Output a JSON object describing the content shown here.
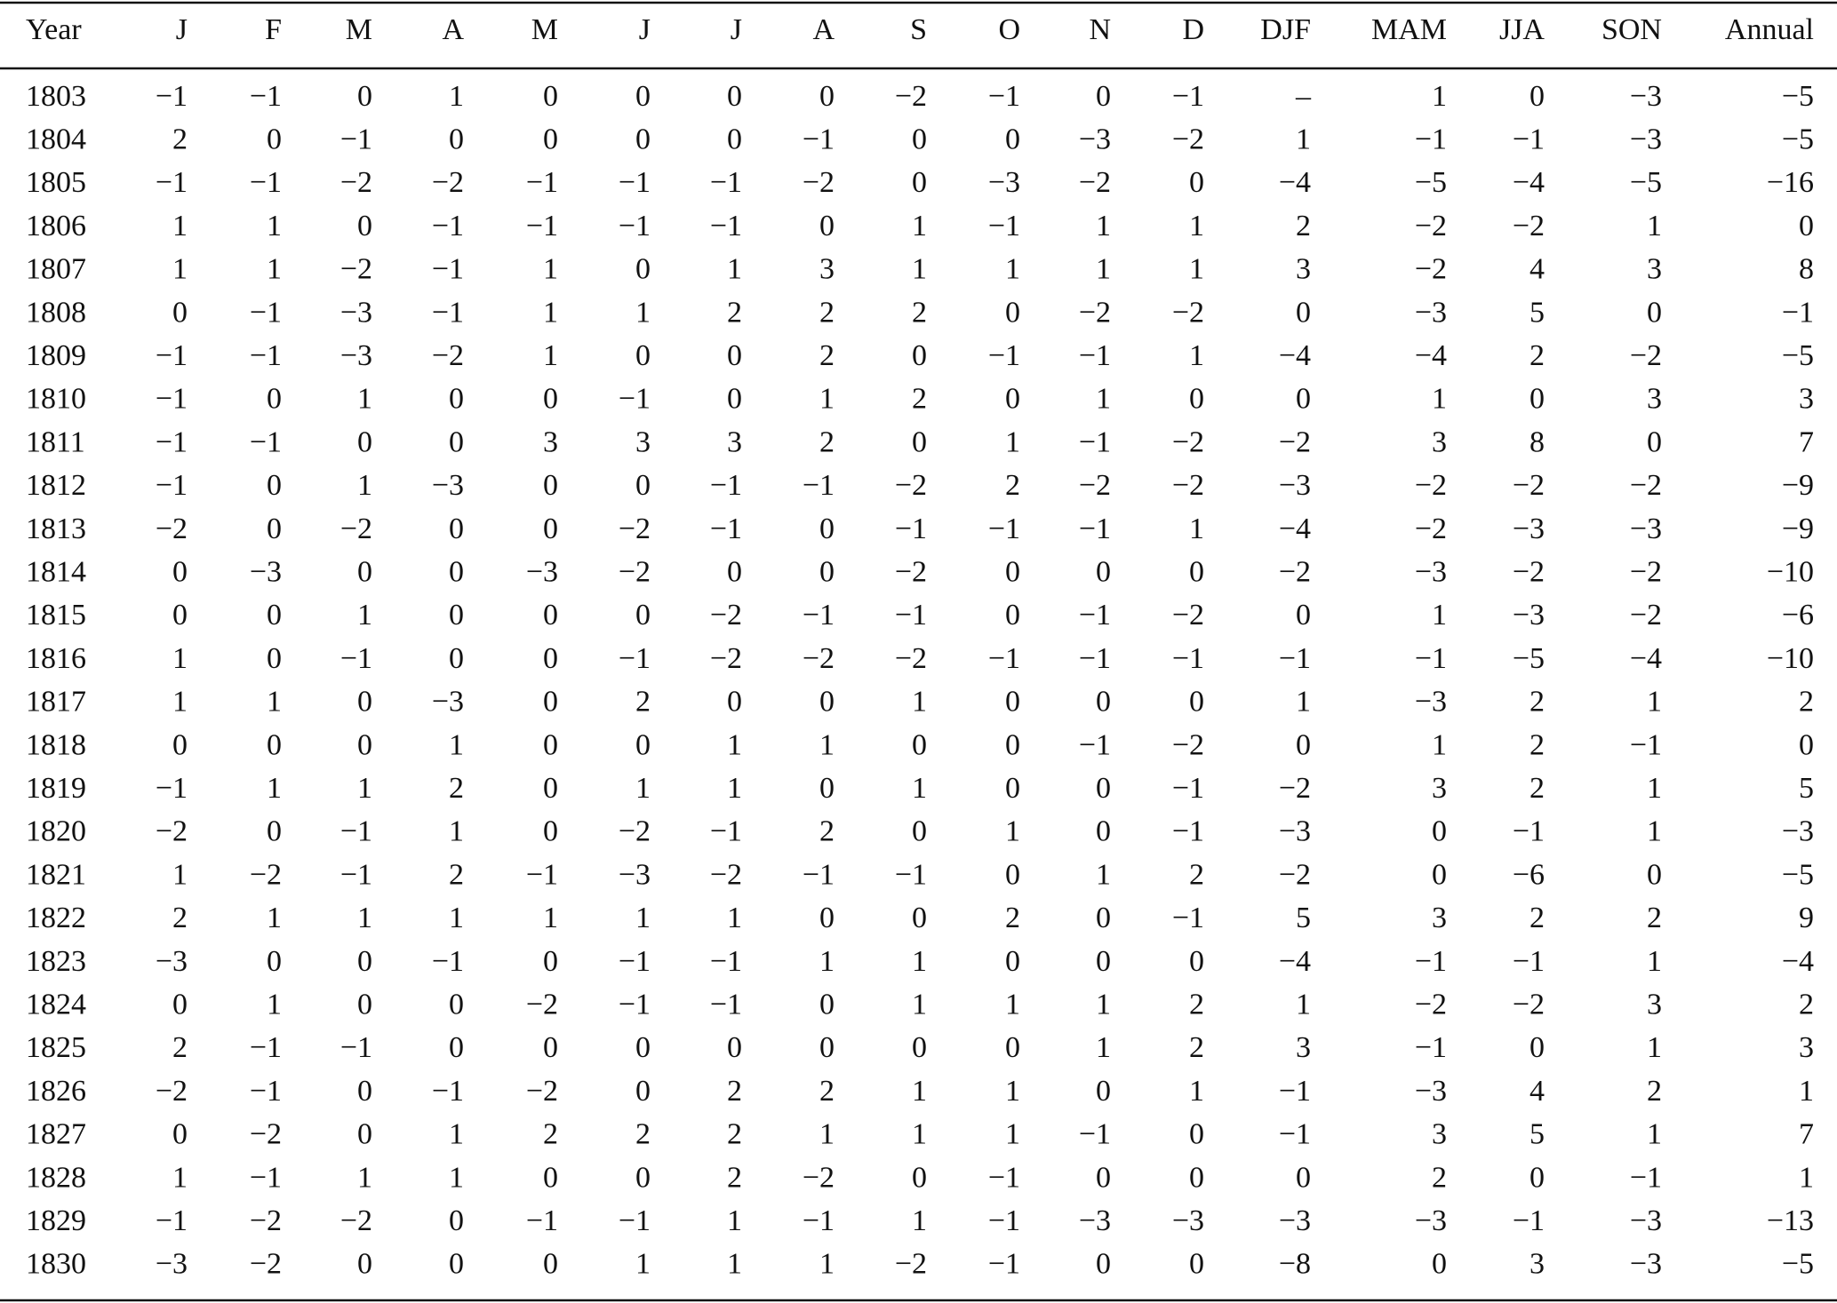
{
  "table": {
    "header": [
      "Year",
      "J",
      "F",
      "M",
      "A",
      "M",
      "J",
      "J",
      "A",
      "S",
      "O",
      "N",
      "D",
      "DJF",
      "MAM",
      "JJA",
      "SON",
      "Annual"
    ],
    "rows": [
      [
        "1803",
        "−1",
        "−1",
        "0",
        "1",
        "0",
        "0",
        "0",
        "0",
        "−2",
        "−1",
        "0",
        "−1",
        "–",
        "1",
        "0",
        "−3",
        "−5"
      ],
      [
        "1804",
        "2",
        "0",
        "−1",
        "0",
        "0",
        "0",
        "0",
        "−1",
        "0",
        "0",
        "−3",
        "−2",
        "1",
        "−1",
        "−1",
        "−3",
        "−5"
      ],
      [
        "1805",
        "−1",
        "−1",
        "−2",
        "−2",
        "−1",
        "−1",
        "−1",
        "−2",
        "0",
        "−3",
        "−2",
        "0",
        "−4",
        "−5",
        "−4",
        "−5",
        "−16"
      ],
      [
        "1806",
        "1",
        "1",
        "0",
        "−1",
        "−1",
        "−1",
        "−1",
        "0",
        "1",
        "−1",
        "1",
        "1",
        "2",
        "−2",
        "−2",
        "1",
        "0"
      ],
      [
        "1807",
        "1",
        "1",
        "−2",
        "−1",
        "1",
        "0",
        "1",
        "3",
        "1",
        "1",
        "1",
        "1",
        "3",
        "−2",
        "4",
        "3",
        "8"
      ],
      [
        "1808",
        "0",
        "−1",
        "−3",
        "−1",
        "1",
        "1",
        "2",
        "2",
        "2",
        "0",
        "−2",
        "−2",
        "0",
        "−3",
        "5",
        "0",
        "−1"
      ],
      [
        "1809",
        "−1",
        "−1",
        "−3",
        "−2",
        "1",
        "0",
        "0",
        "2",
        "0",
        "−1",
        "−1",
        "1",
        "−4",
        "−4",
        "2",
        "−2",
        "−5"
      ],
      [
        "1810",
        "−1",
        "0",
        "1",
        "0",
        "0",
        "−1",
        "0",
        "1",
        "2",
        "0",
        "1",
        "0",
        "0",
        "1",
        "0",
        "3",
        "3"
      ],
      [
        "1811",
        "−1",
        "−1",
        "0",
        "0",
        "3",
        "3",
        "3",
        "2",
        "0",
        "1",
        "−1",
        "−2",
        "−2",
        "3",
        "8",
        "0",
        "7"
      ],
      [
        "1812",
        "−1",
        "0",
        "1",
        "−3",
        "0",
        "0",
        "−1",
        "−1",
        "−2",
        "2",
        "−2",
        "−2",
        "−3",
        "−2",
        "−2",
        "−2",
        "−9"
      ],
      [
        "1813",
        "−2",
        "0",
        "−2",
        "0",
        "0",
        "−2",
        "−1",
        "0",
        "−1",
        "−1",
        "−1",
        "1",
        "−4",
        "−2",
        "−3",
        "−3",
        "−9"
      ],
      [
        "1814",
        "0",
        "−3",
        "0",
        "0",
        "−3",
        "−2",
        "0",
        "0",
        "−2",
        "0",
        "0",
        "0",
        "−2",
        "−3",
        "−2",
        "−2",
        "−10"
      ],
      [
        "1815",
        "0",
        "0",
        "1",
        "0",
        "0",
        "0",
        "−2",
        "−1",
        "−1",
        "0",
        "−1",
        "−2",
        "0",
        "1",
        "−3",
        "−2",
        "−6"
      ],
      [
        "1816",
        "1",
        "0",
        "−1",
        "0",
        "0",
        "−1",
        "−2",
        "−2",
        "−2",
        "−1",
        "−1",
        "−1",
        "−1",
        "−1",
        "−5",
        "−4",
        "−10"
      ],
      [
        "1817",
        "1",
        "1",
        "0",
        "−3",
        "0",
        "2",
        "0",
        "0",
        "1",
        "0",
        "0",
        "0",
        "1",
        "−3",
        "2",
        "1",
        "2"
      ],
      [
        "1818",
        "0",
        "0",
        "0",
        "1",
        "0",
        "0",
        "1",
        "1",
        "0",
        "0",
        "−1",
        "−2",
        "0",
        "1",
        "2",
        "−1",
        "0"
      ],
      [
        "1819",
        "−1",
        "1",
        "1",
        "2",
        "0",
        "1",
        "1",
        "0",
        "1",
        "0",
        "0",
        "−1",
        "−2",
        "3",
        "2",
        "1",
        "5"
      ],
      [
        "1820",
        "−2",
        "0",
        "−1",
        "1",
        "0",
        "−2",
        "−1",
        "2",
        "0",
        "1",
        "0",
        "−1",
        "−3",
        "0",
        "−1",
        "1",
        "−3"
      ],
      [
        "1821",
        "1",
        "−2",
        "−1",
        "2",
        "−1",
        "−3",
        "−2",
        "−1",
        "−1",
        "0",
        "1",
        "2",
        "−2",
        "0",
        "−6",
        "0",
        "−5"
      ],
      [
        "1822",
        "2",
        "1",
        "1",
        "1",
        "1",
        "1",
        "1",
        "0",
        "0",
        "2",
        "0",
        "−1",
        "5",
        "3",
        "2",
        "2",
        "9"
      ],
      [
        "1823",
        "−3",
        "0",
        "0",
        "−1",
        "0",
        "−1",
        "−1",
        "1",
        "1",
        "0",
        "0",
        "0",
        "−4",
        "−1",
        "−1",
        "1",
        "−4"
      ],
      [
        "1824",
        "0",
        "1",
        "0",
        "0",
        "−2",
        "−1",
        "−1",
        "0",
        "1",
        "1",
        "1",
        "2",
        "1",
        "−2",
        "−2",
        "3",
        "2"
      ],
      [
        "1825",
        "2",
        "−1",
        "−1",
        "0",
        "0",
        "0",
        "0",
        "0",
        "0",
        "0",
        "1",
        "2",
        "3",
        "−1",
        "0",
        "1",
        "3"
      ],
      [
        "1826",
        "−2",
        "−1",
        "0",
        "−1",
        "−2",
        "0",
        "2",
        "2",
        "1",
        "1",
        "0",
        "1",
        "−1",
        "−3",
        "4",
        "2",
        "1"
      ],
      [
        "1827",
        "0",
        "−2",
        "0",
        "1",
        "2",
        "2",
        "2",
        "1",
        "1",
        "1",
        "−1",
        "0",
        "−1",
        "3",
        "5",
        "1",
        "7"
      ],
      [
        "1828",
        "1",
        "−1",
        "1",
        "1",
        "0",
        "0",
        "2",
        "−2",
        "0",
        "−1",
        "0",
        "0",
        "0",
        "2",
        "0",
        "−1",
        "1"
      ],
      [
        "1829",
        "−1",
        "−2",
        "−2",
        "0",
        "−1",
        "−1",
        "1",
        "−1",
        "1",
        "−1",
        "−3",
        "−3",
        "−3",
        "−3",
        "−1",
        "−3",
        "−13"
      ],
      [
        "1830",
        "−3",
        "−2",
        "0",
        "0",
        "0",
        "1",
        "1",
        "1",
        "−2",
        "−1",
        "0",
        "0",
        "−8",
        "0",
        "3",
        "−3",
        "−5"
      ]
    ]
  }
}
